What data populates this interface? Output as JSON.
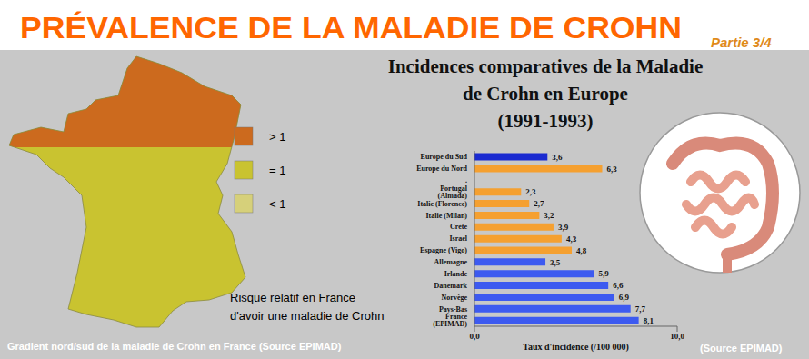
{
  "header": {
    "title": "PRÉVALENCE DE LA MALADIE DE CROHN",
    "part": "Partie 3/4"
  },
  "map": {
    "legend": [
      {
        "label": "> 1",
        "color": "#cc6a1e"
      },
      {
        "label": "= 1",
        "color": "#c9c330"
      },
      {
        "label": "< 1",
        "color": "#d6d07a"
      }
    ],
    "caption": [
      "Risque relatif en France",
      "d'avoir une maladie de Crohn"
    ],
    "footer": "Gradient nord/sud de la maladie de Crohn en France (Source EPIMAD)"
  },
  "chart_data": {
    "type": "bar",
    "orientation": "horizontal",
    "title": [
      "Incidences comparatives de la Maladie",
      "de Crohn en Europe",
      "(1991-1993)"
    ],
    "x_label": "Taux d'incidence (/100 000)",
    "categories": [
      "Europe du Sud",
      "Europe du Nord",
      ".",
      "Portugal (Almada)",
      "Italie (Florence)",
      "Italie (Milan)",
      "Crète",
      "Israel",
      "Espagne (Vigo)",
      "Allemagne",
      "Irlande",
      "Danemark",
      "Norvège",
      "Pays-Bas",
      "France (EPIMAD)"
    ],
    "values": [
      3.6,
      6.3,
      null,
      2.3,
      2.7,
      3.2,
      3.9,
      4.3,
      4.8,
      3.5,
      5.9,
      6.6,
      6.9,
      7.7,
      8.1
    ],
    "value_labels": [
      "3,6",
      "6,3",
      null,
      "2,3",
      "2,7",
      "3,2",
      "3,9",
      "4,3",
      "4,8",
      "3,5",
      "5,9",
      "6,6",
      "6,9",
      "7,7",
      "8,1"
    ],
    "colors": [
      "#1a2ad0",
      "#f5a030",
      null,
      "#f5a030",
      "#f5a030",
      "#f5a030",
      "#f5a030",
      "#f5a030",
      "#f5a030",
      "#3d5af0",
      "#3d5af0",
      "#3d5af0",
      "#3d5af0",
      "#3d5af0",
      "#3d5af0"
    ],
    "xlim": [
      0,
      10
    ],
    "xticks": [
      {
        "value": 0,
        "label": "0,0"
      },
      {
        "value": 10,
        "label": "10,0"
      }
    ],
    "data_labels": true,
    "grid": false
  },
  "source": "(Source EPIMAD)"
}
